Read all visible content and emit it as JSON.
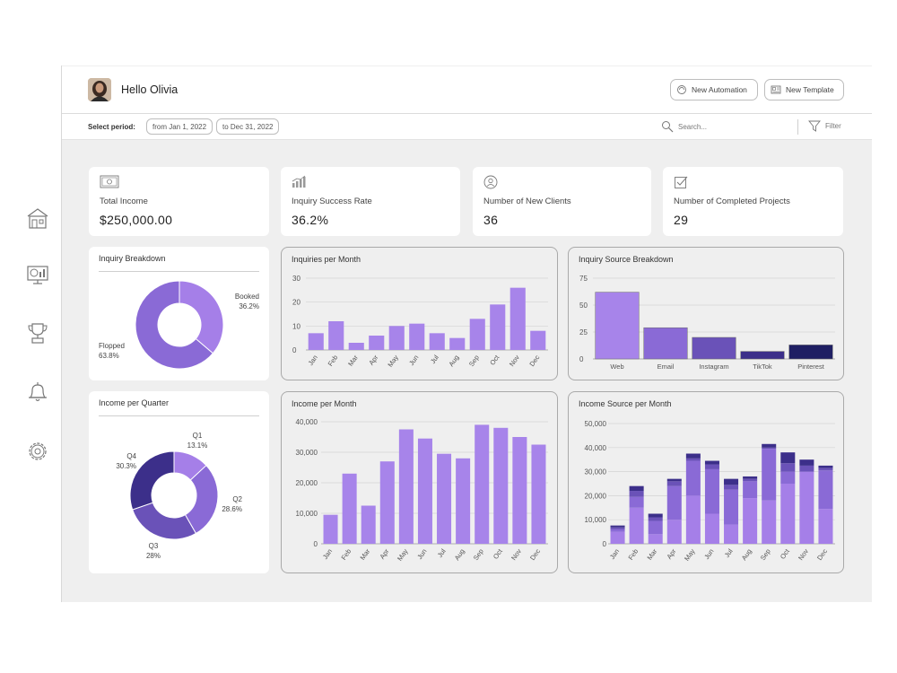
{
  "header": {
    "greeting": "Hello Olivia",
    "buttons": [
      {
        "label": "New Automation",
        "icon": "automation-icon"
      },
      {
        "label": "New Template",
        "icon": "template-icon"
      }
    ]
  },
  "toolbar": {
    "period_label": "Select period:",
    "from": "from Jan 1, 2022",
    "to": "to Dec 31, 2022",
    "search_placeholder": "Search...",
    "filter_label": "Filter"
  },
  "sidebar": {
    "items": [
      {
        "icon": "home-icon"
      },
      {
        "icon": "dashboard-icon"
      },
      {
        "icon": "trophy-icon"
      },
      {
        "icon": "bell-icon"
      },
      {
        "icon": "gear-icon"
      }
    ]
  },
  "kpis": [
    {
      "label": "Total Income",
      "value": "$250,000.00",
      "icon": "money-icon"
    },
    {
      "label": "Inquiry Success Rate",
      "value": "36.2%",
      "icon": "bar-chart-icon"
    },
    {
      "label": "Number of New Clients",
      "value": "36",
      "icon": "user-icon"
    },
    {
      "label": "Number of Completed Projects",
      "value": "29",
      "icon": "checkbox-icon"
    }
  ],
  "colors": {
    "light_purple": "#a57fe8",
    "mid_purple": "#8a6ad6",
    "violet": "#6a52b8",
    "deep_indigo": "#3c2f8a",
    "navy": "#1f1f63",
    "bar_purple": "#a784ea"
  },
  "chart_data": [
    {
      "type": "pie",
      "title": "Inquiry Breakdown",
      "slices": [
        {
          "name": "Booked",
          "pct_label": "36.2%",
          "value": 36.2,
          "color": "#a57fe8"
        },
        {
          "name": "Flopped",
          "pct_label": "63.8%",
          "value": 63.8,
          "color": "#8a6ad6"
        }
      ]
    },
    {
      "type": "bar",
      "title": "Inquiries per Month",
      "categories": [
        "Jan",
        "Feb",
        "Mar",
        "Apr",
        "May",
        "Jun",
        "Jul",
        "Aug",
        "Sep",
        "Oct",
        "Nov",
        "Dec"
      ],
      "values": [
        7,
        12,
        3,
        6,
        10,
        11,
        7,
        5,
        13,
        19,
        26,
        8
      ],
      "ylim": [
        0,
        30
      ],
      "yticks": [
        "0",
        "10",
        "20",
        "30"
      ]
    },
    {
      "type": "bar",
      "title": "Inquiry Source Breakdown",
      "categories": [
        "Web",
        "Email",
        "Instagram",
        "TikTok",
        "Pinterest"
      ],
      "values": [
        62,
        29,
        20,
        7,
        13
      ],
      "colors": [
        "#a784ea",
        "#8a6ad6",
        "#6a52b8",
        "#3c2f8a",
        "#1f1f63"
      ],
      "ylim": [
        0,
        75
      ],
      "yticks": [
        "0",
        "25",
        "50",
        "75"
      ]
    },
    {
      "type": "pie",
      "title": "Income per Quarter",
      "slices": [
        {
          "name": "Q1",
          "pct_label": "13.1%",
          "value": 13.1,
          "color": "#a57fe8"
        },
        {
          "name": "Q2",
          "pct_label": "28.6%",
          "value": 28.6,
          "color": "#8a6ad6"
        },
        {
          "name": "Q3",
          "pct_label": "28%",
          "value": 28.0,
          "color": "#6a52b8"
        },
        {
          "name": "Q4",
          "pct_label": "30.3%",
          "value": 30.3,
          "color": "#3c2f8a"
        }
      ]
    },
    {
      "type": "bar",
      "title": "Income per Month",
      "categories": [
        "Jan",
        "Feb",
        "Mar",
        "Apr",
        "May",
        "Jun",
        "Jul",
        "Aug",
        "Sep",
        "Oct",
        "Nov",
        "Dec"
      ],
      "values": [
        9500,
        23000,
        12500,
        27000,
        37500,
        34500,
        29500,
        28000,
        39000,
        38000,
        35000,
        32500
      ],
      "ylim": [
        0,
        40000
      ],
      "yticks": [
        "0",
        "10,000",
        "20,000",
        "30,000",
        "40,000"
      ]
    },
    {
      "type": "bar",
      "stacked": true,
      "title": "Income Source per Month",
      "categories": [
        "Jan",
        "Feb",
        "Mar",
        "Apr",
        "May",
        "Jun",
        "Jul",
        "Aug",
        "Sep",
        "Oct",
        "Nov",
        "Dec"
      ],
      "ylim": [
        0,
        50000
      ],
      "yticks": [
        "0",
        "10,000",
        "20,000",
        "30,000",
        "40,000",
        "50,000"
      ],
      "series": [
        {
          "color": "#a57fe8",
          "values": [
            5000,
            15000,
            4000,
            10000,
            20000,
            12500,
            8000,
            19000,
            18000,
            25000,
            30000,
            14500
          ]
        },
        {
          "color": "#8a6ad6",
          "values": [
            1000,
            4500,
            5500,
            14000,
            14500,
            18500,
            14500,
            7000,
            21500,
            5000,
            0,
            16000
          ]
        },
        {
          "color": "#6a52b8",
          "values": [
            800,
            2500,
            1500,
            2000,
            1000,
            2000,
            2000,
            1000,
            500,
            3500,
            2500,
            1000
          ]
        },
        {
          "color": "#3c2f8a",
          "values": [
            800,
            2000,
            1500,
            1000,
            2000,
            1500,
            2500,
            1000,
            1500,
            4500,
            2500,
            1000
          ]
        }
      ]
    }
  ]
}
